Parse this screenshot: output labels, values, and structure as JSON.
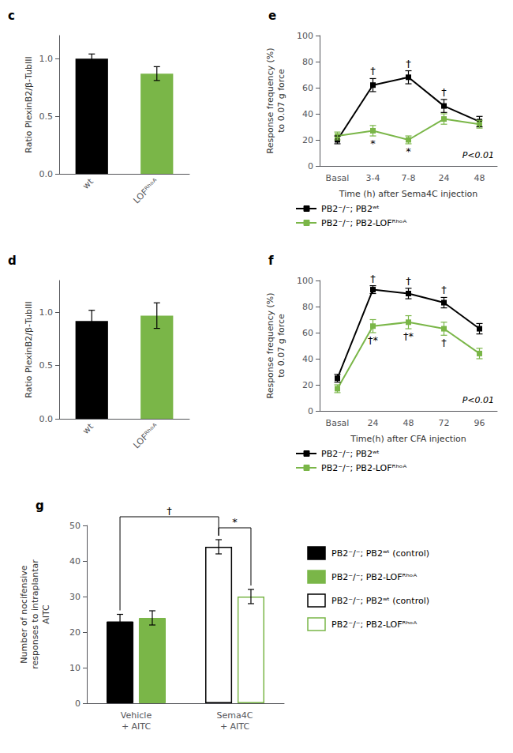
{
  "chart_data": [
    {
      "type": "bar",
      "title": "c",
      "categories": [
        "wt",
        "LOFᴿʰᵒᴬ"
      ],
      "values": [
        1.0,
        0.87
      ],
      "errors": [
        0.04,
        0.06
      ],
      "colors": [
        "#000000",
        "#7ab648"
      ],
      "ylabel": "Ratio PlexinB2/β-TubIII",
      "ylim": [
        0,
        1.2
      ],
      "yticks": [
        {
          "value": 0,
          "label": "0.0"
        },
        0.5,
        {
          "value": 1.0,
          "label": "1.0"
        }
      ],
      "grid": false
    },
    {
      "type": "bar",
      "title": "d",
      "categories": [
        "wt",
        "LOFᴿʰᵒᴬ"
      ],
      "values": [
        0.92,
        0.97
      ],
      "errors": [
        0.1,
        0.12
      ],
      "colors": [
        "#000000",
        "#7ab648"
      ],
      "ylabel": "Ratio PlexinB2/β-TubIII",
      "ylim": [
        0,
        1.3
      ],
      "yticks": [
        {
          "value": 0,
          "label": "0.0"
        },
        0.5,
        {
          "value": 1.0,
          "label": "1.0"
        }
      ],
      "grid": false
    },
    {
      "type": "line",
      "title": "e",
      "categories": [
        "Basal",
        "3-4",
        "7-8",
        "24",
        "48"
      ],
      "series": [
        {
          "name": "PB2⁻/⁻; PB2ʷᵗ",
          "color": "#000000",
          "marker": "square",
          "values": [
            20,
            62,
            68,
            46,
            34
          ],
          "errors": [
            3,
            5,
            5,
            5,
            4
          ],
          "annotations": [
            null,
            "†",
            "†",
            "†",
            null
          ]
        },
        {
          "name": "PB2⁻/⁻; PB2-LOFᴿʰᵒᴬ",
          "color": "#7ab648",
          "marker": "square",
          "values": [
            23,
            27,
            20,
            36,
            32
          ],
          "errors": [
            3,
            4,
            3,
            4,
            3
          ],
          "annotations": [
            null,
            "*",
            "*",
            null,
            null
          ]
        }
      ],
      "xlabel": "Time (h) after Sema4C injection",
      "ylabel": "Response frequency (%)\nto 0.07 g force",
      "annotations": [
        "P<0.01"
      ],
      "ylim": [
        0,
        100
      ],
      "yticks": [
        0,
        20,
        40,
        60,
        80,
        100
      ],
      "grid": false
    },
    {
      "type": "line",
      "title": "f",
      "categories": [
        "Basal",
        "24",
        "48",
        "72",
        "96"
      ],
      "series": [
        {
          "name": "PB2⁻/⁻; PB2ʷᵗ",
          "color": "#000000",
          "marker": "square",
          "values": [
            25,
            93,
            90,
            83,
            63
          ],
          "errors": [
            3,
            3,
            4,
            4,
            4
          ],
          "annotations": [
            null,
            "†",
            "†",
            "†",
            null
          ]
        },
        {
          "name": "PB2⁻/⁻; PB2-LOFᴿʰᵒᴬ",
          "color": "#7ab648",
          "marker": "square",
          "values": [
            17,
            65,
            68,
            63,
            44
          ],
          "errors": [
            3,
            5,
            5,
            5,
            4
          ],
          "annotations": [
            null,
            "†*",
            "†*",
            "†",
            null
          ]
        }
      ],
      "xlabel": "Time(h) after CFA injection",
      "ylabel": "Response frequency (%)\nto 0.07 g force",
      "annotations": [
        "P<0.01"
      ],
      "ylim": [
        0,
        100
      ],
      "yticks": [
        0,
        20,
        40,
        60,
        80,
        100
      ],
      "grid": false
    },
    {
      "type": "bar",
      "title": "g",
      "categories": [
        "Vehicle\n+ AITC",
        "Sema4C\n+ AITC"
      ],
      "series": [
        {
          "name": "PB2⁻/⁻; PB2ʷᵗ (control)",
          "color": "#000000",
          "marker": "filled",
          "values": [
            23,
            null
          ],
          "errors": [
            2,
            null
          ]
        },
        {
          "name": "PB2⁻/⁻; PB2-LOFᴿʰᵒᴬ",
          "color": "#7ab648",
          "marker": "filled",
          "values": [
            24,
            null
          ],
          "errors": [
            2,
            null
          ]
        },
        {
          "name": "PB2⁻/⁻; PB2ʷᵗ (control)",
          "color": "#000000",
          "marker": "open",
          "values": [
            null,
            44
          ],
          "errors": [
            null,
            2
          ]
        },
        {
          "name": "PB2⁻/⁻; PB2-LOFᴿʰᵒᴬ",
          "color": "#7ab648",
          "marker": "open",
          "values": [
            null,
            30
          ],
          "errors": [
            null,
            2
          ]
        }
      ],
      "annotations": [
        {
          "text": "†",
          "between": [
            0,
            2
          ]
        },
        {
          "text": "*",
          "between": [
            2,
            3
          ]
        }
      ],
      "ylabel": "Number of nocifensive\nresponses to intraplantar\nAITC",
      "ylim": [
        0,
        50
      ],
      "yticks": [
        0,
        10,
        20,
        30,
        40,
        50
      ],
      "grid": false
    }
  ]
}
